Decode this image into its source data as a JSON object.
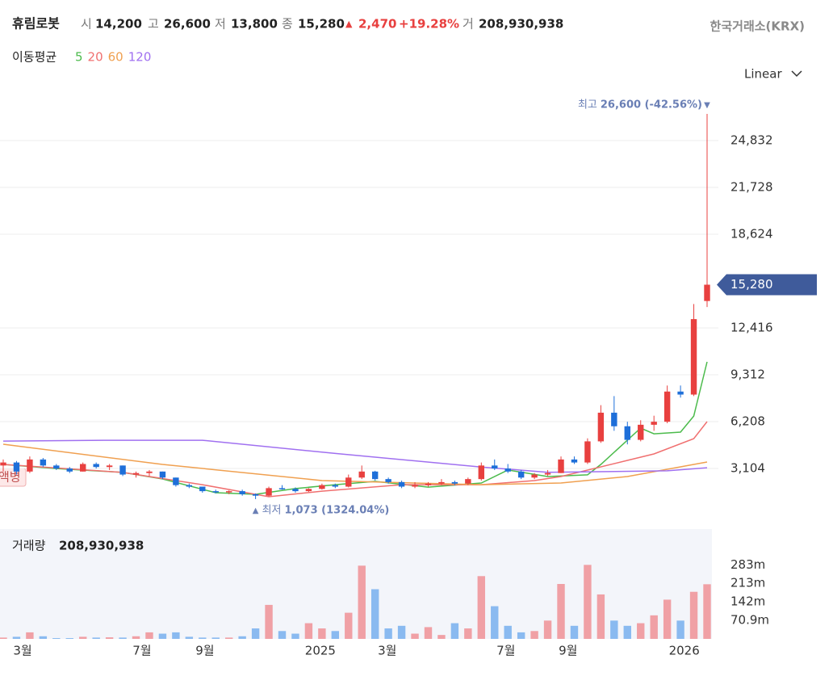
{
  "header": {
    "name": "휴림로봇",
    "items": [
      {
        "label": "시",
        "value": "14,200"
      },
      {
        "label": "고",
        "value": "26,600"
      },
      {
        "label": "저",
        "value": "13,800"
      },
      {
        "label": "종",
        "value": "15,280"
      }
    ],
    "change_arrow": "▲",
    "change": "2,470",
    "change_pct": "+19.28%",
    "volume_label": "거",
    "volume": "208,930,938",
    "exchange": "한국거래소(KRX)"
  },
  "ma_legend": {
    "label": "이동평균"
  },
  "scale_selector": "Linear",
  "left_tag": "액병",
  "chart_data": {
    "type": "candlestick",
    "up_color": "#e8403f",
    "down_color": "#1e6fd9",
    "open": [
      3300,
      3500,
      2900,
      3700,
      3300,
      3100,
      2900,
      3400,
      3200,
      3300,
      2700,
      2800,
      2900,
      2500,
      2000,
      1900,
      1600,
      1550,
      1600,
      1400,
      1300,
      1800,
      1750,
      1600,
      1750,
      2000,
      1900,
      2500,
      2900,
      2400,
      2200,
      1900,
      2000,
      2100,
      2200,
      2100,
      2400,
      3300,
      3100,
      2900,
      2500,
      2700,
      2800,
      3700,
      3500,
      4900,
      6800,
      5900,
      5000,
      6000,
      6200,
      8200,
      8000,
      14200
    ],
    "high": [
      3700,
      3600,
      3900,
      3800,
      3400,
      3200,
      3500,
      3500,
      3400,
      3300,
      2900,
      3000,
      2900,
      2500,
      2100,
      1900,
      1700,
      1650,
      1700,
      1450,
      1900,
      2000,
      1850,
      1800,
      2100,
      2100,
      2700,
      3300,
      2950,
      2500,
      2300,
      2200,
      2200,
      2400,
      2300,
      2500,
      3500,
      3700,
      3400,
      3000,
      2800,
      3000,
      3900,
      3900,
      5100,
      7300,
      7900,
      6200,
      6300,
      6600,
      8600,
      8600,
      14000,
      26600
    ],
    "low": [
      2900,
      2700,
      2800,
      3200,
      3000,
      2800,
      2900,
      3100,
      3000,
      2600,
      2500,
      2600,
      2400,
      1900,
      1800,
      1500,
      1450,
      1400,
      1300,
      1073,
      1250,
      1700,
      1500,
      1550,
      1700,
      1800,
      1850,
      2400,
      2300,
      2100,
      1800,
      1800,
      1900,
      2000,
      2000,
      2000,
      2300,
      3000,
      2800,
      2400,
      2400,
      2600,
      2800,
      3400,
      3400,
      4800,
      5600,
      4700,
      4900,
      5600,
      6100,
      7800,
      7900,
      13800
    ],
    "close": [
      3500,
      2900,
      3700,
      3300,
      3100,
      2900,
      3400,
      3200,
      3300,
      2700,
      2800,
      2900,
      2500,
      2000,
      1900,
      1600,
      1550,
      1600,
      1400,
      1300,
      1800,
      1750,
      1600,
      1750,
      2000,
      1900,
      2500,
      2900,
      2400,
      2200,
      1900,
      2000,
      2100,
      2200,
      2100,
      2400,
      3300,
      3100,
      2900,
      2500,
      2700,
      2800,
      3700,
      3500,
      4900,
      6800,
      5900,
      5000,
      6000,
      6200,
      8200,
      8000,
      13000,
      15280
    ],
    "ylim": [
      -535,
      27990
    ],
    "yticks": [
      {
        "value": 3104,
        "label": "3,104"
      },
      {
        "value": 6208,
        "label": "6,208"
      },
      {
        "value": 9312,
        "label": "9,312"
      },
      {
        "value": 12416,
        "label": "12,416"
      },
      {
        "value": 18624,
        "label": "18,624"
      },
      {
        "value": 21728,
        "label": "21,728"
      },
      {
        "value": 24832,
        "label": "24,832"
      }
    ],
    "grid": true,
    "xticks": [
      {
        "value": 1.46,
        "label": "3월"
      },
      {
        "value": 10.45,
        "label": "7월"
      },
      {
        "value": 15.19,
        "label": "9월"
      },
      {
        "value": 23.88,
        "label": "2025"
      },
      {
        "value": 28.92,
        "label": "3월"
      },
      {
        "value": 37.85,
        "label": "7월"
      },
      {
        "value": 42.53,
        "label": "9월"
      },
      {
        "value": 51.28,
        "label": "2026"
      }
    ],
    "last_price": {
      "value": 15280,
      "label": "15,280"
    },
    "max_marker": {
      "label": "최고",
      "text": "26,600 (-42.56%)",
      "arrow": "▼"
    },
    "min_marker": {
      "label": "최저",
      "text": "1,073 (1324.04%)",
      "arrow": "▲"
    },
    "moving_averages": [
      {
        "name": "5",
        "color": "#4cbb4c",
        "x": [
          0,
          4,
          9,
          12,
          16,
          19,
          22,
          25,
          28,
          32,
          36,
          38,
          41,
          44,
          45,
          48,
          49,
          51,
          52,
          53
        ],
        "values": [
          3370,
          3100,
          2840,
          2410,
          1500,
          1390,
          1770,
          2030,
          2250,
          1870,
          2140,
          3000,
          2570,
          2680,
          3370,
          5780,
          5400,
          5510,
          6580,
          10170
        ]
      },
      {
        "name": "20",
        "color": "#f07070",
        "x": [
          0,
          9,
          15,
          20,
          24,
          30,
          36,
          40,
          42,
          47,
          49,
          52,
          53
        ],
        "values": [
          3370,
          2840,
          2030,
          1230,
          1600,
          2030,
          2030,
          2300,
          2570,
          3640,
          4070,
          5080,
          6210
        ]
      },
      {
        "name": "60",
        "color": "#f0a050",
        "x": [
          0,
          12,
          24,
          36,
          42,
          47,
          51,
          53
        ],
        "values": [
          4710,
          3370,
          2300,
          2030,
          2140,
          2570,
          3210,
          3530
        ]
      },
      {
        "name": "120",
        "color": "#a070f0",
        "x": [
          0,
          8,
          15,
          25,
          36,
          41,
          50,
          53
        ],
        "values": [
          4920,
          4970,
          4970,
          4100,
          3200,
          2850,
          2950,
          3150
        ]
      }
    ],
    "volume": {
      "label": "거래량",
      "value_text": "208,930,938",
      "up_color": "#f0a0a5",
      "down_color": "#8abaf0",
      "values": [
        5,
        8,
        25,
        10,
        3,
        3,
        8,
        5,
        6,
        5,
        10,
        25,
        20,
        25,
        8,
        5,
        5,
        5,
        10,
        40,
        130,
        30,
        20,
        60,
        40,
        30,
        100,
        280,
        190,
        40,
        50,
        20,
        45,
        15,
        60,
        40,
        240,
        125,
        50,
        25,
        30,
        70,
        210,
        50,
        283,
        170,
        70,
        50,
        60,
        90,
        150,
        70,
        180,
        208.930938
      ],
      "ylim": [
        0,
        420
      ],
      "yticks": [
        {
          "value": 70.9,
          "label": "70.9m"
        },
        {
          "value": 142,
          "label": "142m"
        },
        {
          "value": 213,
          "label": "213m"
        },
        {
          "value": 283,
          "label": "283m"
        }
      ]
    }
  }
}
